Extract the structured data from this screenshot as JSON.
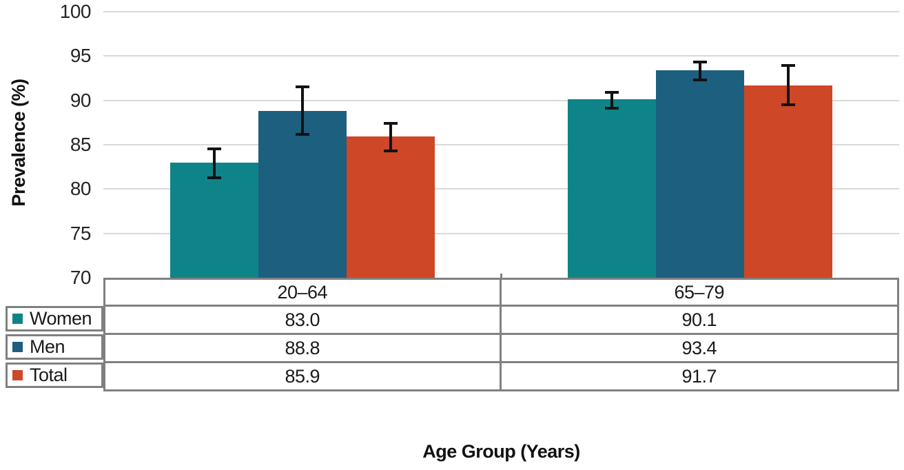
{
  "chart_data": {
    "type": "bar",
    "title": "",
    "xlabel": "Age Group (Years)",
    "ylabel": "Prevalence (%)",
    "ylim": [
      70,
      100
    ],
    "yticks": [
      70,
      75,
      80,
      85,
      90,
      95,
      100
    ],
    "grid": true,
    "error_bars": true,
    "legend_position": "table-left",
    "categories": [
      "20–64",
      "65–79"
    ],
    "series": [
      {
        "name": "Women",
        "color": "#0E8489",
        "values": [
          83.0,
          90.1
        ],
        "ci_low": [
          81.3,
          89.1
        ],
        "ci_high": [
          84.5,
          90.9
        ]
      },
      {
        "name": "Men",
        "color": "#1D5F7E",
        "values": [
          88.8,
          93.4
        ],
        "ci_low": [
          86.2,
          92.3
        ],
        "ci_high": [
          91.5,
          94.3
        ]
      },
      {
        "name": "Total",
        "color": "#CE4727",
        "values": [
          85.9,
          91.7
        ],
        "ci_low": [
          84.3,
          89.5
        ],
        "ci_high": [
          87.4,
          93.9
        ]
      }
    ],
    "table_value_decimals": 1
  },
  "colors": {
    "gridline": "#D9D9D9",
    "table_border": "#808080",
    "text": "#1A1A1A",
    "error_bar": "#121212",
    "background": "#FFFFFF"
  }
}
